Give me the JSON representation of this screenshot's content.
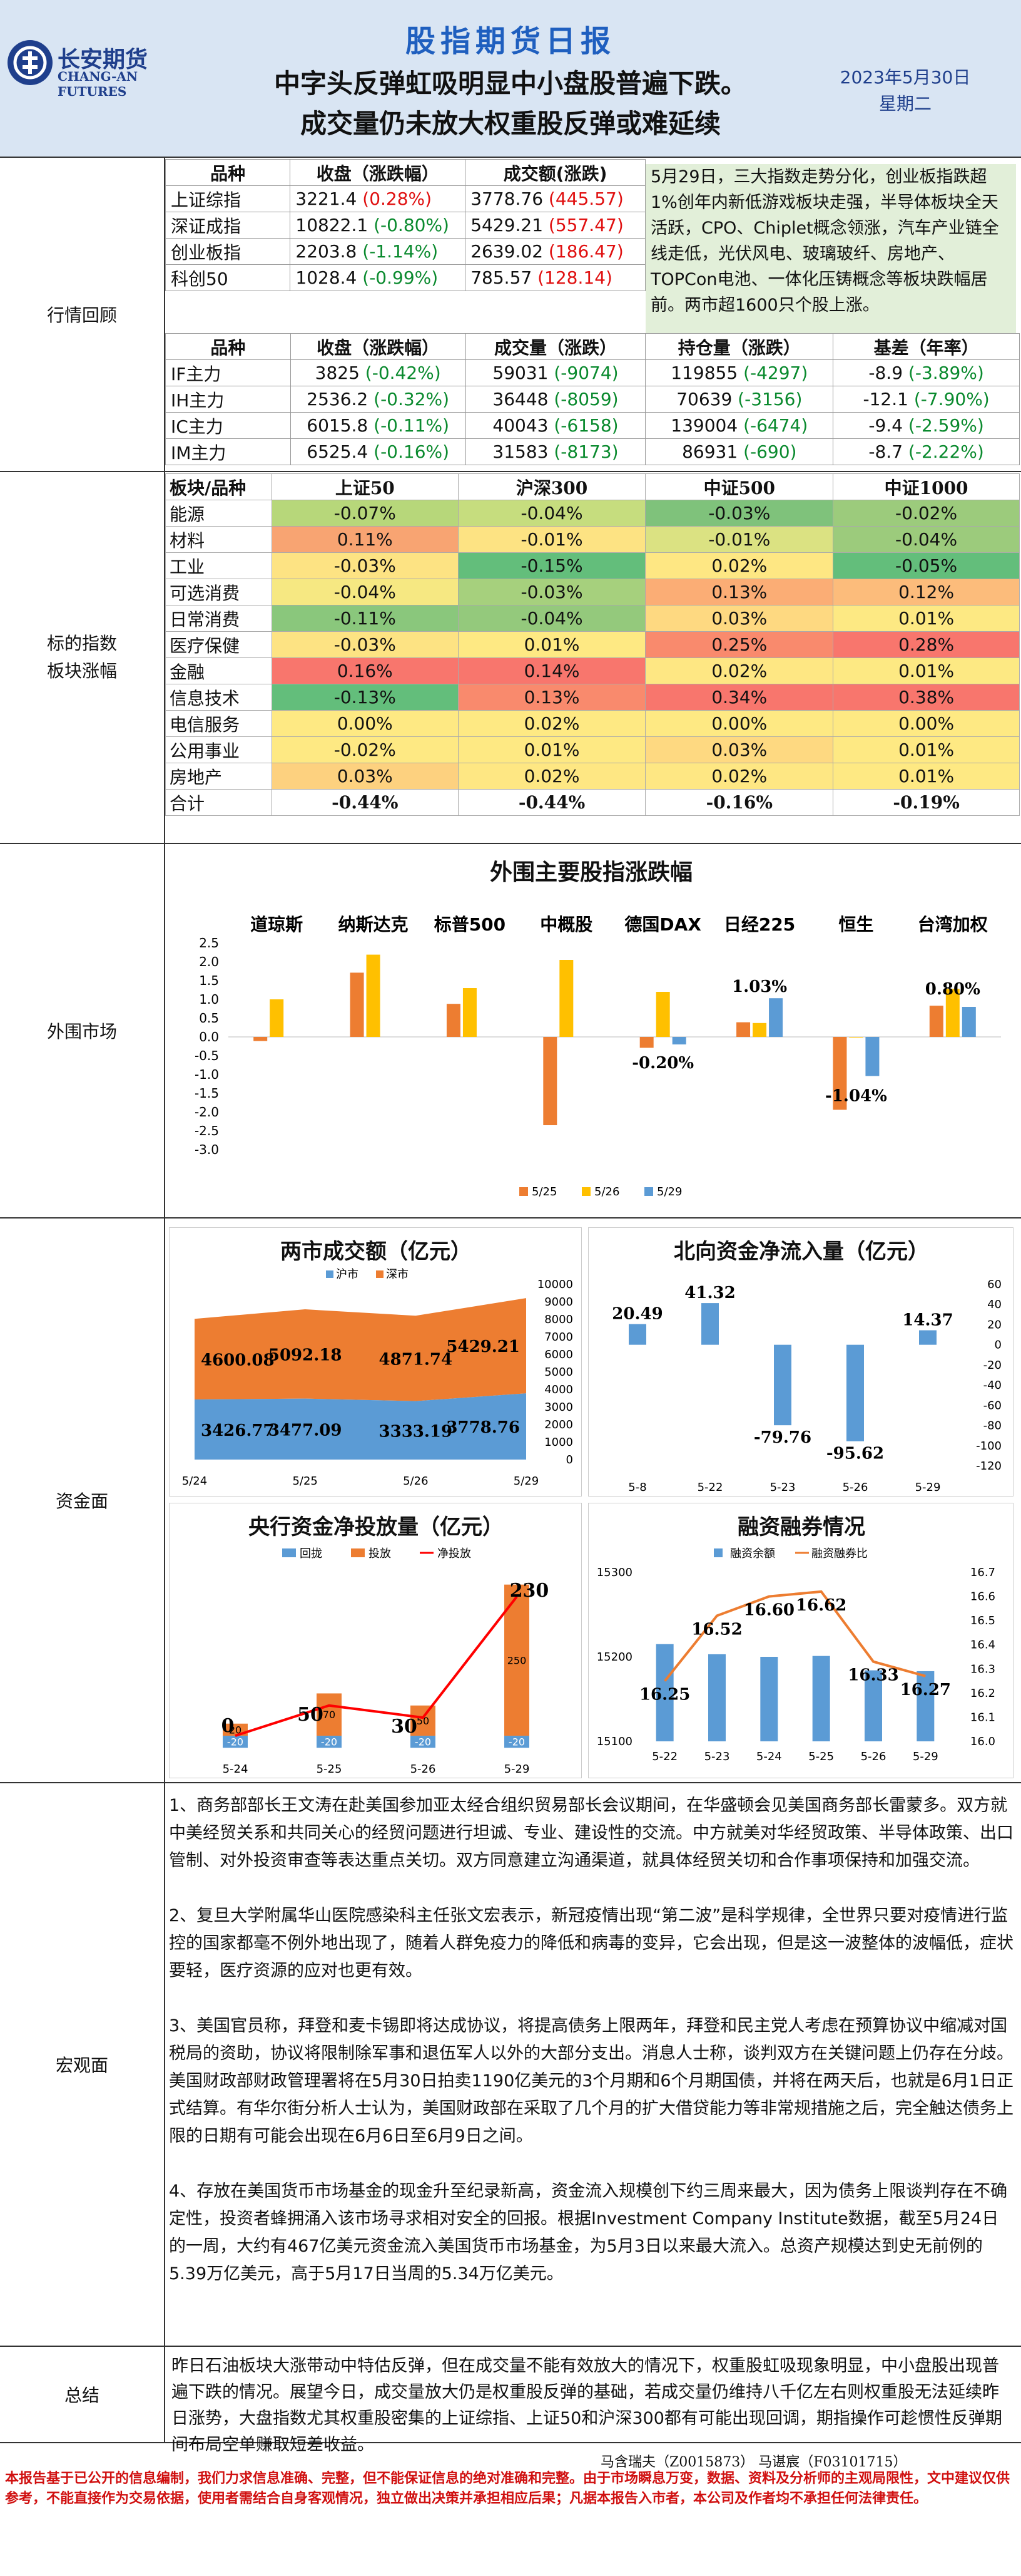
{
  "header": {
    "logo_cn": "长安期货",
    "logo_en": "CHANG-AN FUTURES",
    "report_title": "股指期货日报",
    "headline1": "中字头反弹虹吸明显中小盘股普遍下跌。",
    "headline2": "成交量仍未放大权重股反弹或难延续",
    "date": "2023年5月30日",
    "weekday": "星期二"
  },
  "sections": {
    "market_review": "行情回顾",
    "sector": "标的指数板块涨幅",
    "overseas": "外围市场",
    "funds": "资金面",
    "macro": "宏观面",
    "summary": "总结"
  },
  "spot_table": {
    "headers": [
      "品种",
      "收盘（涨跌幅）",
      "成交额(涨跌)"
    ],
    "rows": [
      {
        "name": "上证综指",
        "close": "3221.4",
        "chg": "(0.28%)",
        "chg_color": "red",
        "amt": "3778.76",
        "amt_chg": "(445.57)",
        "amt_color": "red"
      },
      {
        "name": "深证成指",
        "close": "10822.1",
        "chg": "(-0.80%)",
        "chg_color": "green",
        "amt": "5429.21",
        "amt_chg": "(557.47)",
        "amt_color": "red"
      },
      {
        "name": "创业板指",
        "close": "2203.8",
        "chg": "(-1.14%)",
        "chg_color": "green",
        "amt": "2639.02",
        "amt_chg": "(186.47)",
        "amt_color": "red"
      },
      {
        "name": "科创50",
        "close": "1028.4",
        "chg": "(-0.99%)",
        "chg_color": "green",
        "amt": "785.57",
        "amt_chg": "(128.14)",
        "amt_color": "red"
      }
    ]
  },
  "review_note": "5月29日，三大指数走势分化，创业板指跌超1%创年内新低游戏板块走强，半导体板块全天活跃，CPO、Chiplet概念领涨，汽车产业链全线走低，光伏风电、玻璃玻纤、房地产、TOPCon电池、一体化压铸概念等板块跌幅居前。两市超1600只个股上涨。",
  "futures_table": {
    "headers": [
      "品种",
      "收盘（涨跌幅）",
      "成交量（涨跌）",
      "持仓量（涨跌）",
      "基差（年率）"
    ],
    "rows": [
      {
        "name": "IF主力",
        "close": "3825",
        "chg": "(-0.42%)",
        "vol": "59031",
        "vol_chg": "(-9074)",
        "oi": "119855",
        "oi_chg": "(-4297)",
        "basis": "-8.9",
        "basis_ann": "(-3.89%)"
      },
      {
        "name": "IH主力",
        "close": "2536.2",
        "chg": "(-0.32%)",
        "vol": "36448",
        "vol_chg": "(-8059)",
        "oi": "70639",
        "oi_chg": "(-3156)",
        "basis": "-12.1",
        "basis_ann": "(-7.90%)"
      },
      {
        "name": "IC主力",
        "close": "6015.8",
        "chg": "(-0.11%)",
        "vol": "40043",
        "vol_chg": "(-6158)",
        "oi": "139004",
        "oi_chg": "(-6474)",
        "basis": "-9.4",
        "basis_ann": "(-2.59%)"
      },
      {
        "name": "IM主力",
        "close": "6525.4",
        "chg": "(-0.16%)",
        "vol": "31583",
        "vol_chg": "(-8173)",
        "oi": "86931",
        "oi_chg": "(-690)",
        "basis": "-8.7",
        "basis_ann": "(-2.22%)"
      }
    ]
  },
  "sector_table": {
    "headers": [
      "板块/品种",
      "上证50",
      "沪深300",
      "中证500",
      "中证1000"
    ],
    "rows": [
      {
        "name": "能源",
        "vals": [
          "-0.07%",
          "-0.04%",
          "-0.03%",
          "-0.02%"
        ],
        "colors": [
          "#b7d77a",
          "#c6dd7e",
          "#7fc27b",
          "#9ccb7c"
        ]
      },
      {
        "name": "材料",
        "vals": [
          "0.11%",
          "-0.01%",
          "-0.01%",
          "-0.04%"
        ],
        "colors": [
          "#f8a472",
          "#fde383",
          "#dbe282",
          "#9ccb7c"
        ]
      },
      {
        "name": "工业",
        "vals": [
          "-0.03%",
          "-0.15%",
          "0.02%",
          "-0.05%"
        ],
        "colors": [
          "#fde383",
          "#63be7b",
          "#fee783",
          "#63be7b"
        ]
      },
      {
        "name": "可选消费",
        "vals": [
          "-0.04%",
          "-0.03%",
          "0.13%",
          "0.12%"
        ],
        "colors": [
          "#f6e882",
          "#a6d07d",
          "#fbad75",
          "#fcbc7b"
        ]
      },
      {
        "name": "日常消费",
        "vals": [
          "-0.11%",
          "-0.04%",
          "0.03%",
          "0.01%"
        ],
        "colors": [
          "#8ac77c",
          "#94c97c",
          "#fed981",
          "#fde983"
        ]
      },
      {
        "name": "医疗保健",
        "vals": [
          "-0.03%",
          "0.01%",
          "0.25%",
          "0.28%"
        ],
        "colors": [
          "#fde383",
          "#fee983",
          "#f98a6d",
          "#f8766d"
        ]
      },
      {
        "name": "金融",
        "vals": [
          "0.16%",
          "0.14%",
          "0.02%",
          "0.01%"
        ],
        "colors": [
          "#f8766d",
          "#f8766d",
          "#fee783",
          "#fde983"
        ]
      },
      {
        "name": "信息技术",
        "vals": [
          "-0.13%",
          "0.13%",
          "0.34%",
          "0.38%"
        ],
        "colors": [
          "#63be7b",
          "#f98a6d",
          "#f8766d",
          "#f8766d"
        ]
      },
      {
        "name": "电信服务",
        "vals": [
          "0.00%",
          "0.02%",
          "0.00%",
          "0.00%"
        ],
        "colors": [
          "#fee983",
          "#fee983",
          "#fee983",
          "#fee983"
        ]
      },
      {
        "name": "公用事业",
        "vals": [
          "-0.02%",
          "0.01%",
          "0.03%",
          "0.01%"
        ],
        "colors": [
          "#fee983",
          "#fee983",
          "#fed981",
          "#fee983"
        ]
      },
      {
        "name": "房地产",
        "vals": [
          "0.03%",
          "0.02%",
          "0.02%",
          "0.01%"
        ],
        "colors": [
          "#fdd17f",
          "#fee783",
          "#fee783",
          "#fee983"
        ]
      }
    ],
    "total_label": "合计",
    "totals": [
      "-0.44%",
      "-0.44%",
      "-0.16%",
      "-0.19%"
    ]
  },
  "overseas_chart": {
    "title": "外围主要股指涨跌幅",
    "groups": [
      "道琼斯",
      "纳斯达克",
      "标普500",
      "中概股",
      "德国DAX",
      "日经225",
      "恒生",
      "台湾加权"
    ],
    "series_names": [
      "5/25",
      "5/26",
      "5/29"
    ],
    "colors": [
      "#ed7d31",
      "#ffc000",
      "#5b9bd5"
    ],
    "values": [
      [
        -0.11,
        1.0,
        null
      ],
      [
        1.71,
        2.19,
        null
      ],
      [
        0.88,
        1.3,
        null
      ],
      [
        -2.35,
        2.05,
        null
      ],
      [
        -0.29,
        1.2,
        -0.2
      ],
      [
        0.39,
        0.37,
        1.03
      ],
      [
        -1.94,
        0.0,
        -1.04
      ],
      [
        0.83,
        1.28,
        0.8
      ]
    ],
    "labels": [
      "1.03%",
      "-0.20%",
      "-1.04%",
      "0.80%"
    ],
    "y_ticks": [
      "2.5",
      "2.0",
      "1.5",
      "1.0",
      "0.5",
      "0.0",
      "-0.5",
      "-1.0",
      "-1.5",
      "-2.0",
      "-2.5",
      "-3.0"
    ],
    "ylim": [
      -3.0,
      2.5
    ]
  },
  "turnover_chart": {
    "title": "两市成交额（亿元）",
    "legend": [
      "沪市",
      "深市"
    ],
    "colors": [
      "#5b9bd5",
      "#ed7d31"
    ],
    "categories": [
      "5/24",
      "5/25",
      "5/26",
      "5/29"
    ],
    "sh": [
      3426.77,
      3477.09,
      3333.19,
      3778.76
    ],
    "sz": [
      4600.08,
      5092.18,
      4871.74,
      5429.21
    ],
    "y_ticks": [
      "10000",
      "9000",
      "8000",
      "7000",
      "6000",
      "5000",
      "4000",
      "3000",
      "2000",
      "1000",
      "0"
    ],
    "ylim": [
      0,
      10000
    ]
  },
  "northbound_chart": {
    "title": "北向资金净流入量（亿元）",
    "categories": [
      "5-8",
      "5-22",
      "5-23",
      "5-26",
      "5-29"
    ],
    "values": [
      20.49,
      41.32,
      -79.76,
      -95.62,
      14.37
    ],
    "y_ticks": [
      "60",
      "40",
      "20",
      "0",
      "-20",
      "-40",
      "-60",
      "-80",
      "-100",
      "-120"
    ],
    "ylim": [
      -120,
      60
    ],
    "color": "#5b9bd5"
  },
  "pboc_chart": {
    "title": "央行资金净投放量（亿元）",
    "legend": [
      "回拢",
      "投放",
      "净投放"
    ],
    "colors": [
      "#5b9bd5",
      "#ed7d31",
      "#ff0000"
    ],
    "categories": [
      "5-24",
      "5-25",
      "5-26",
      "5-29"
    ],
    "withdraw": [
      -20,
      -20,
      -20,
      -20
    ],
    "inject": [
      20,
      70,
      50,
      250
    ],
    "net": [
      0,
      50,
      30,
      230
    ],
    "inject_labels": [
      "20",
      "70",
      "50",
      "250"
    ],
    "withdraw_labels": [
      "-20",
      "-20",
      "-20",
      "-20"
    ],
    "net_labels": [
      "0",
      "50",
      "30",
      "230"
    ]
  },
  "margin_chart": {
    "title": "融资融券情况",
    "legend": [
      "融资余额",
      "融资融券比"
    ],
    "colors": [
      "#5b9bd5",
      "#ed7d31"
    ],
    "categories": [
      "5-22",
      "5-23",
      "5-24",
      "5-25",
      "5-26",
      "5-29"
    ],
    "balance": [
      15215,
      15203,
      15200,
      15201,
      15184,
      15183
    ],
    "ratio": [
      16.25,
      16.52,
      16.6,
      16.62,
      16.33,
      16.27
    ],
    "ratio_labels": [
      "16.25",
      "16.52",
      "16.60",
      "16.62",
      "16.33",
      "16.27"
    ],
    "y_ticks": [
      "15300",
      "15200",
      "15100"
    ],
    "y2_ticks": [
      "16.7",
      "16.6",
      "16.5",
      "16.4",
      "16.3",
      "16.2",
      "16.1",
      "16.0"
    ],
    "ylim": [
      15100,
      15300
    ],
    "y2lim": [
      16.0,
      16.7
    ]
  },
  "macro": [
    "1、商务部部长王文涛在赴美国参加亚太经合组织贸易部长会议期间，在华盛顿会见美国商务部长雷蒙多。双方就中美经贸关系和共同关心的经贸问题进行坦诚、专业、建设性的交流。中方就美对华经贸政策、半导体政策、出口管制、对外投资审查等表达重点关切。双方同意建立沟通渠道，就具体经贸关切和合作事项保持和加强交流。",
    "2、复旦大学附属华山医院感染科主任张文宏表示，新冠疫情出现“第二波”是科学规律，全世界只要对疫情进行监控的国家都毫不例外地出现了，随着人群免疫力的降低和病毒的变异，它会出现，但是这一波整体的波幅低，症状要轻，医疗资源的应对也更有效。",
    "3、美国官员称，拜登和麦卡锡即将达成协议，将提高债务上限两年，拜登和民主党人考虑在预算协议中缩减对国税局的资助，协议将限制除军事和退伍军人以外的大部分支出。消息人士称，谈判双方在关键问题上仍存在分歧。美国财政部财政管理署将在5月30日拍卖1190亿美元的3个月期和6个月期国债，并将在两天后，也就是6月1日正式结算。有华尔街分析人士认为，美国财政部在采取了几个月的扩大借贷能力等非常规措施之后，完全触达债务上限的日期有可能会出现在6月6日至6月9日之间。",
    "4、存放在美国货币市场基金的现金升至纪录新高，资金流入规模创下约三周来最大，因为债务上限谈判存在不确定性，投资者蜂拥涌入该市场寻求相对安全的回报。根据Investment Company Institute数据，截至5月24日的一周，大约有467亿美元资金流入美国货币市场基金，为5月3日以来最大流入。总资产规模达到史无前例的5.39万亿美元，高于5月17日当周的5.34万亿美元。"
  ],
  "summary": "昨日石油板块大涨带动中特估反弹，但在成交量不能有效放大的情况下，权重股虹吸现象明显，中小盘股出现普遍下跌的情况。展望今日，成交量放大仍是权重股反弹的基础，若成交量仍维持八千亿左右则权重股无法延续昨日涨势，大盘指数尤其权重股密集的上证综指、上证50和沪深300都有可能出现回调，期指操作可趁惯性反弹期间布局空单赚取短差收益。",
  "analysts": "马含瑞夫（Z0015873）    马谌宸（F03101715）",
  "disclaimer": "本报告基于已公开的信息编制，我们力求信息准确、完整，但不能保证信息的绝对准确和完整。由于市场瞬息万变，数据、资料及分析师的主观局限性，文中建议仅供参考，不能直接作为交易依据，使用者需结合自身客观情况，独立做出决策并承担相应后果；凡据本报告入市者，本公司及作者均不承担任何法律责任。"
}
